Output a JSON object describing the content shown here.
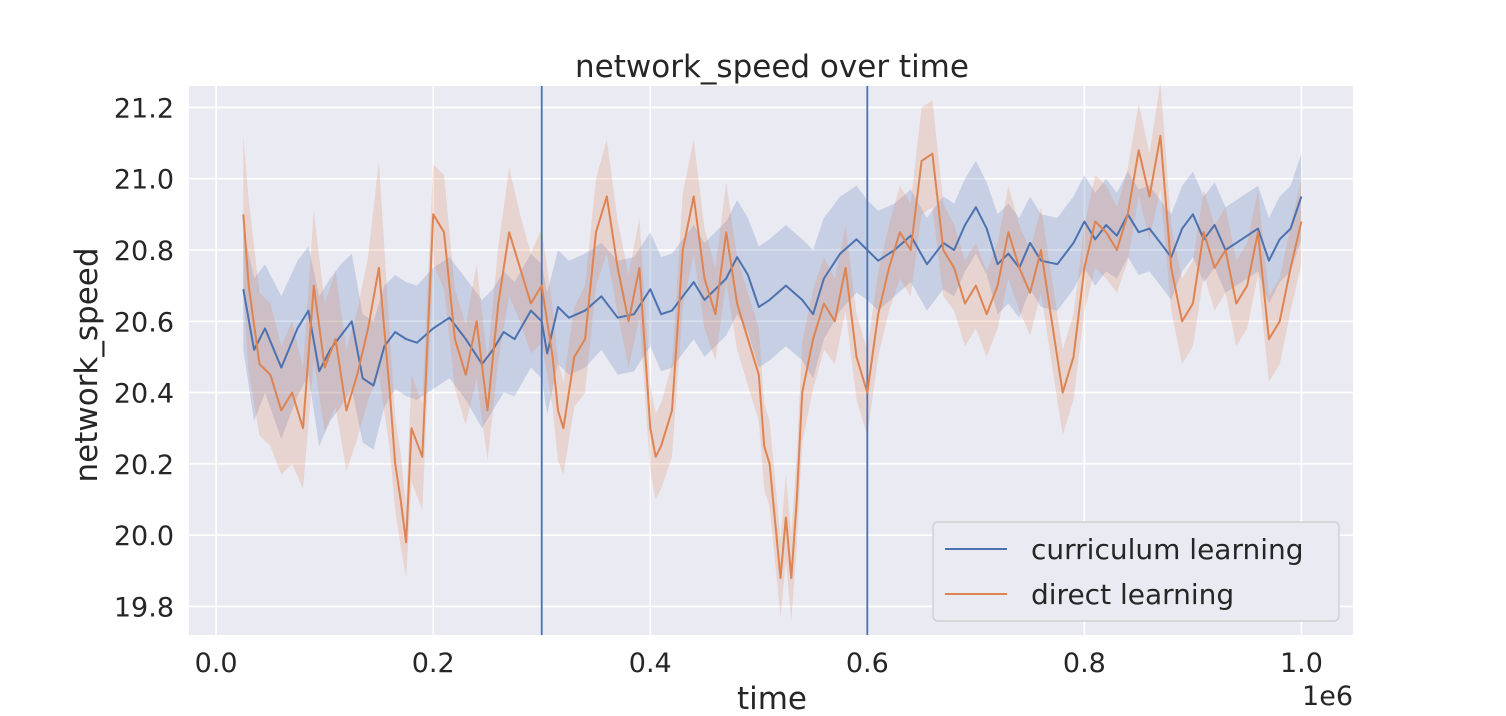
{
  "chart_data": {
    "type": "line",
    "title": "network_speed over time",
    "xlabel": "time",
    "ylabel": "network_speed",
    "x_scale_label": "1e6",
    "xlim": [
      -0.025,
      1.0475
    ],
    "ylim": [
      19.72,
      21.26
    ],
    "x_ticks": [
      0.0,
      0.2,
      0.4,
      0.6,
      0.8,
      1.0
    ],
    "x_tick_labels": [
      "0.0",
      "0.2",
      "0.4",
      "0.6",
      "0.8",
      "1.0"
    ],
    "y_ticks": [
      19.8,
      20.0,
      20.2,
      20.4,
      20.6,
      20.8,
      21.0,
      21.2
    ],
    "y_tick_labels": [
      "19.8",
      "20.0",
      "20.2",
      "20.4",
      "20.6",
      "20.8",
      "21.0",
      "21.2"
    ],
    "vertical_lines": [
      0.3,
      0.6
    ],
    "grid": true,
    "legend_position": "lower-right",
    "colors": {
      "background": "#eaeaf2",
      "grid": "#ffffff",
      "curriculum": "#4c72b0",
      "direct": "#dd8452"
    },
    "series": [
      {
        "name": "curriculum learning",
        "color": "#4c72b0",
        "x": [
          0.025,
          0.035,
          0.045,
          0.06,
          0.075,
          0.085,
          0.095,
          0.105,
          0.115,
          0.125,
          0.135,
          0.145,
          0.155,
          0.165,
          0.175,
          0.185,
          0.2,
          0.215,
          0.23,
          0.245,
          0.255,
          0.265,
          0.275,
          0.29,
          0.3,
          0.305,
          0.315,
          0.325,
          0.34,
          0.355,
          0.37,
          0.385,
          0.4,
          0.41,
          0.42,
          0.43,
          0.44,
          0.45,
          0.47,
          0.48,
          0.49,
          0.5,
          0.51,
          0.525,
          0.54,
          0.55,
          0.56,
          0.575,
          0.59,
          0.6,
          0.61,
          0.625,
          0.64,
          0.655,
          0.67,
          0.68,
          0.69,
          0.7,
          0.71,
          0.72,
          0.73,
          0.74,
          0.75,
          0.76,
          0.775,
          0.79,
          0.8,
          0.81,
          0.82,
          0.83,
          0.84,
          0.85,
          0.86,
          0.87,
          0.88,
          0.89,
          0.9,
          0.91,
          0.92,
          0.93,
          0.94,
          0.95,
          0.96,
          0.97,
          0.98,
          0.99,
          1.0
        ],
        "y": [
          20.69,
          20.52,
          20.58,
          20.47,
          20.58,
          20.63,
          20.46,
          20.52,
          20.56,
          20.6,
          20.44,
          20.42,
          20.53,
          20.57,
          20.55,
          20.54,
          20.58,
          20.61,
          20.55,
          20.48,
          20.52,
          20.57,
          20.55,
          20.63,
          20.6,
          20.51,
          20.64,
          20.61,
          20.63,
          20.67,
          20.61,
          20.62,
          20.69,
          20.62,
          20.63,
          20.67,
          20.71,
          20.66,
          20.72,
          20.78,
          20.73,
          20.64,
          20.66,
          20.7,
          20.66,
          20.62,
          20.72,
          20.79,
          20.83,
          20.8,
          20.77,
          20.8,
          20.84,
          20.76,
          20.82,
          20.8,
          20.87,
          20.92,
          20.86,
          20.76,
          20.79,
          20.75,
          20.82,
          20.77,
          20.76,
          20.82,
          20.88,
          20.83,
          20.87,
          20.84,
          20.9,
          20.85,
          20.86,
          20.82,
          20.78,
          20.86,
          20.9,
          20.83,
          20.87,
          20.8,
          20.82,
          20.84,
          20.86,
          20.77,
          20.83,
          20.86,
          20.95
        ],
        "ci_halfwidth": [
          0.17,
          0.2,
          0.18,
          0.2,
          0.19,
          0.18,
          0.21,
          0.2,
          0.2,
          0.19,
          0.18,
          0.18,
          0.17,
          0.16,
          0.16,
          0.16,
          0.17,
          0.17,
          0.17,
          0.18,
          0.17,
          0.17,
          0.16,
          0.16,
          0.16,
          0.17,
          0.16,
          0.16,
          0.16,
          0.15,
          0.16,
          0.16,
          0.16,
          0.16,
          0.16,
          0.16,
          0.16,
          0.16,
          0.16,
          0.16,
          0.16,
          0.17,
          0.17,
          0.17,
          0.17,
          0.18,
          0.17,
          0.16,
          0.15,
          0.14,
          0.14,
          0.13,
          0.13,
          0.13,
          0.13,
          0.13,
          0.13,
          0.13,
          0.13,
          0.14,
          0.14,
          0.14,
          0.13,
          0.13,
          0.13,
          0.13,
          0.13,
          0.13,
          0.13,
          0.12,
          0.12,
          0.12,
          0.12,
          0.12,
          0.12,
          0.12,
          0.12,
          0.12,
          0.12,
          0.12,
          0.12,
          0.12,
          0.12,
          0.12,
          0.12,
          0.12,
          0.12
        ]
      },
      {
        "name": "direct learning",
        "color": "#dd8452",
        "x": [
          0.025,
          0.03,
          0.04,
          0.05,
          0.06,
          0.07,
          0.08,
          0.09,
          0.1,
          0.11,
          0.12,
          0.13,
          0.14,
          0.15,
          0.16,
          0.165,
          0.17,
          0.175,
          0.18,
          0.19,
          0.2,
          0.21,
          0.22,
          0.23,
          0.24,
          0.25,
          0.26,
          0.27,
          0.28,
          0.29,
          0.3,
          0.31,
          0.315,
          0.32,
          0.33,
          0.34,
          0.35,
          0.36,
          0.37,
          0.38,
          0.39,
          0.4,
          0.405,
          0.41,
          0.42,
          0.43,
          0.44,
          0.45,
          0.46,
          0.47,
          0.48,
          0.49,
          0.5,
          0.505,
          0.51,
          0.52,
          0.525,
          0.53,
          0.535,
          0.54,
          0.55,
          0.56,
          0.57,
          0.58,
          0.59,
          0.6,
          0.61,
          0.62,
          0.63,
          0.64,
          0.65,
          0.66,
          0.67,
          0.68,
          0.69,
          0.7,
          0.71,
          0.72,
          0.73,
          0.74,
          0.75,
          0.76,
          0.77,
          0.78,
          0.79,
          0.8,
          0.81,
          0.82,
          0.83,
          0.84,
          0.85,
          0.86,
          0.87,
          0.88,
          0.89,
          0.9,
          0.91,
          0.92,
          0.93,
          0.94,
          0.95,
          0.96,
          0.97,
          0.98,
          0.99,
          1.0
        ],
        "y": [
          20.9,
          20.7,
          20.48,
          20.45,
          20.35,
          20.4,
          20.3,
          20.7,
          20.47,
          20.55,
          20.35,
          20.45,
          20.58,
          20.75,
          20.4,
          20.2,
          20.1,
          19.98,
          20.3,
          20.22,
          20.9,
          20.85,
          20.55,
          20.45,
          20.6,
          20.35,
          20.65,
          20.85,
          20.75,
          20.65,
          20.7,
          20.5,
          20.35,
          20.3,
          20.5,
          20.55,
          20.85,
          20.95,
          20.75,
          20.6,
          20.75,
          20.3,
          20.22,
          20.25,
          20.35,
          20.8,
          20.95,
          20.72,
          20.62,
          20.85,
          20.65,
          20.55,
          20.45,
          20.25,
          20.2,
          19.88,
          20.05,
          19.88,
          20.1,
          20.4,
          20.55,
          20.65,
          20.6,
          20.75,
          20.5,
          20.4,
          20.62,
          20.75,
          20.85,
          20.8,
          21.05,
          21.07,
          20.8,
          20.75,
          20.65,
          20.7,
          20.62,
          20.7,
          20.85,
          20.75,
          20.68,
          20.8,
          20.6,
          20.4,
          20.5,
          20.75,
          20.88,
          20.85,
          20.8,
          20.9,
          21.08,
          20.95,
          21.12,
          20.75,
          20.6,
          20.65,
          20.85,
          20.75,
          20.8,
          20.65,
          20.7,
          20.85,
          20.55,
          20.6,
          20.75,
          20.88
        ],
        "ci_halfwidth": [
          0.22,
          0.24,
          0.2,
          0.2,
          0.18,
          0.2,
          0.17,
          0.21,
          0.18,
          0.19,
          0.17,
          0.18,
          0.2,
          0.3,
          0.16,
          0.13,
          0.13,
          0.1,
          0.15,
          0.15,
          0.14,
          0.16,
          0.14,
          0.14,
          0.16,
          0.14,
          0.16,
          0.18,
          0.15,
          0.14,
          0.16,
          0.14,
          0.14,
          0.13,
          0.14,
          0.15,
          0.15,
          0.16,
          0.13,
          0.13,
          0.14,
          0.12,
          0.12,
          0.12,
          0.13,
          0.16,
          0.16,
          0.14,
          0.13,
          0.14,
          0.13,
          0.13,
          0.13,
          0.12,
          0.12,
          0.11,
          0.12,
          0.12,
          0.13,
          0.14,
          0.14,
          0.13,
          0.12,
          0.12,
          0.12,
          0.12,
          0.12,
          0.12,
          0.13,
          0.13,
          0.15,
          0.15,
          0.13,
          0.12,
          0.12,
          0.12,
          0.12,
          0.12,
          0.13,
          0.12,
          0.12,
          0.12,
          0.12,
          0.12,
          0.12,
          0.12,
          0.13,
          0.13,
          0.12,
          0.13,
          0.13,
          0.12,
          0.15,
          0.12,
          0.12,
          0.12,
          0.12,
          0.12,
          0.12,
          0.12,
          0.12,
          0.12,
          0.12,
          0.12,
          0.12,
          0.12
        ]
      }
    ]
  }
}
